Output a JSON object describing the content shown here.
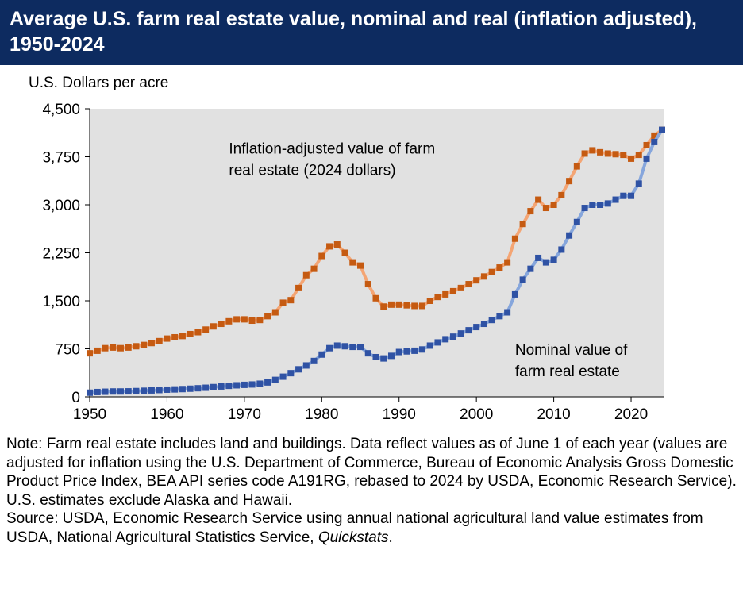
{
  "chart_data": {
    "type": "line",
    "title": "Average U.S. farm real estate value, nominal and real (inflation adjusted), 1950-2024",
    "y_label": "U.S. Dollars per acre",
    "x": [
      1950,
      1951,
      1952,
      1953,
      1954,
      1955,
      1956,
      1957,
      1958,
      1959,
      1960,
      1961,
      1962,
      1963,
      1964,
      1965,
      1966,
      1967,
      1968,
      1969,
      1970,
      1971,
      1972,
      1973,
      1974,
      1975,
      1976,
      1977,
      1978,
      1979,
      1980,
      1981,
      1982,
      1983,
      1984,
      1985,
      1986,
      1987,
      1988,
      1989,
      1990,
      1991,
      1992,
      1993,
      1994,
      1995,
      1996,
      1997,
      1998,
      1999,
      2000,
      2001,
      2002,
      2003,
      2004,
      2005,
      2006,
      2007,
      2008,
      2009,
      2010,
      2011,
      2012,
      2013,
      2014,
      2015,
      2016,
      2017,
      2018,
      2019,
      2020,
      2021,
      2022,
      2023,
      2024
    ],
    "series": [
      {
        "name": "Inflation-adjusted value of farm real estate (2024 dollars)",
        "color": "#c55a11",
        "line_color": "#f4a574",
        "values": [
          680,
          720,
          760,
          770,
          760,
          770,
          790,
          810,
          840,
          870,
          910,
          930,
          950,
          980,
          1010,
          1050,
          1100,
          1140,
          1180,
          1210,
          1210,
          1190,
          1200,
          1260,
          1320,
          1470,
          1510,
          1700,
          1900,
          2000,
          2200,
          2350,
          2380,
          2250,
          2100,
          2050,
          1760,
          1540,
          1410,
          1440,
          1440,
          1430,
          1420,
          1420,
          1500,
          1560,
          1600,
          1650,
          1700,
          1760,
          1820,
          1880,
          1950,
          2020,
          2100,
          2470,
          2700,
          2900,
          3080,
          2950,
          3000,
          3150,
          3370,
          3600,
          3800,
          3850,
          3820,
          3800,
          3790,
          3780,
          3720,
          3780,
          3930,
          4080,
          4170
        ]
      },
      {
        "name": "Nominal value of farm real estate",
        "color": "#2f52a4",
        "line_color": "#86a6dc",
        "values": [
          65,
          75,
          80,
          84,
          84,
          86,
          90,
          95,
          100,
          106,
          112,
          116,
          121,
          127,
          134,
          142,
          152,
          162,
          172,
          180,
          187,
          193,
          205,
          225,
          265,
          315,
          370,
          430,
          490,
          560,
          660,
          760,
          800,
          790,
          780,
          780,
          680,
          620,
          600,
          640,
          700,
          710,
          720,
          740,
          800,
          850,
          900,
          940,
          990,
          1040,
          1090,
          1140,
          1200,
          1260,
          1320,
          1600,
          1830,
          2000,
          2170,
          2100,
          2140,
          2300,
          2520,
          2730,
          2950,
          3000,
          3000,
          3020,
          3080,
          3140,
          3140,
          3330,
          3720,
          3980,
          4170
        ]
      }
    ],
    "annotations": [
      {
        "lines": [
          "Inflation-adjusted value of farm",
          "real estate (2024 dollars)"
        ],
        "x": 1968,
        "y": 3800
      },
      {
        "lines": [
          "Nominal value of",
          "farm real estate"
        ],
        "x": 2005,
        "y": 660
      }
    ],
    "xlim": [
      1950,
      2024
    ],
    "xticks": [
      1950,
      1960,
      1970,
      1980,
      1990,
      2000,
      2010,
      2020
    ],
    "ylim": [
      0,
      4500
    ],
    "yticks": [
      0,
      750,
      {
        "value": 1500,
        "label": "1,500"
      },
      {
        "value": 2250,
        "label": "2,250"
      },
      {
        "value": 3000,
        "label": "3,000"
      },
      {
        "value": 3750,
        "label": "3,750"
      },
      {
        "value": 4500,
        "label": "4,500"
      }
    ],
    "note": "Note: Farm real estate includes land and buildings. Data reflect values as of June 1 of each year (values are adjusted for inflation using the U.S. Department of Commerce, Bureau of Economic Analysis Gross Domestic Product Price Index, BEA API series code A191RG, rebased to 2024 by USDA, Economic Research Service). U.S. estimates exclude Alaska and Hawaii.",
    "source": "Source: USDA, Economic Research Service using annual national agricultural land value estimates from USDA, National Agricultural Statistics Service, ",
    "source_italic": "Quickstats",
    "source_end": "."
  }
}
